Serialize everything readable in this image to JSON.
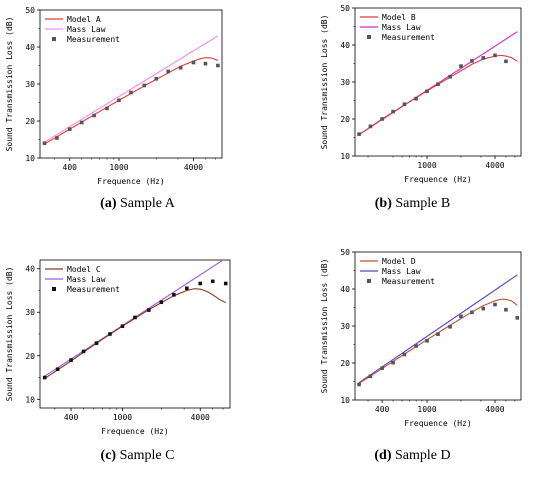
{
  "chart_data": [
    {
      "type": "line",
      "caption_letter": "(a)",
      "caption_text": "Sample A",
      "xlabel": "Frequence (Hz)",
      "ylabel": "Sound Transmission Loss (dB)",
      "xscale": "log",
      "xlim": [
        230,
        6800
      ],
      "ylim": [
        10,
        50
      ],
      "xticks": [
        400,
        1000,
        4000
      ],
      "xtick_labels": [
        "400",
        "1000",
        "4000"
      ],
      "yticks": [
        10,
        20,
        30,
        40,
        50
      ],
      "ytick_labels": [
        "10",
        "20",
        "30",
        "40",
        "50"
      ],
      "legend_position": "top-left",
      "series": [
        {
          "name": "Model A",
          "kind": "line",
          "color": "#e03c3c",
          "x": [
            250,
            400,
            630,
            1000,
            1600,
            2500,
            3150,
            4000,
            4500,
            5000,
            5600,
            6300
          ],
          "y": [
            13.8,
            17.8,
            21.7,
            25.6,
            29.5,
            33.0,
            34.8,
            36.2,
            36.8,
            37.1,
            37.0,
            36.4
          ]
        },
        {
          "name": "Mass Law",
          "kind": "line",
          "color": "#f28ff2",
          "x": [
            250,
            6300
          ],
          "y": [
            14.3,
            43.0
          ]
        },
        {
          "name": "Measurement",
          "kind": "scatter",
          "color": "#555555",
          "x": [
            250,
            315,
            400,
            500,
            630,
            800,
            1000,
            1250,
            1600,
            2000,
            2500,
            3150,
            4000,
            5000,
            6300
          ],
          "y": [
            14.0,
            15.4,
            17.8,
            19.6,
            21.5,
            23.4,
            25.6,
            27.7,
            29.6,
            31.4,
            33.4,
            34.4,
            35.8,
            35.5,
            35.0
          ]
        }
      ]
    },
    {
      "type": "line",
      "caption_letter": "(b)",
      "caption_text": "Sample B",
      "xlabel": "Frequence (Hz)",
      "ylabel": "Sound Transmission Loss (dB)",
      "xscale": "log",
      "xlim": [
        230,
        6800
      ],
      "ylim": [
        10,
        50
      ],
      "xticks": [
        1000,
        4000
      ],
      "xtick_labels": [
        "1000",
        "4000"
      ],
      "yticks": [
        10,
        20,
        30,
        40,
        50
      ],
      "ytick_labels": [
        "10",
        "20",
        "30",
        "40",
        "50"
      ],
      "legend_position": "top-left",
      "series": [
        {
          "name": "Model B",
          "kind": "line",
          "color": "#e03c3c",
          "x": [
            250,
            400,
            630,
            1000,
            1600,
            2500,
            3150,
            4000,
            4500,
            5000,
            5600,
            6300
          ],
          "y": [
            15.8,
            20.0,
            23.8,
            27.6,
            31.3,
            34.8,
            36.2,
            37.0,
            37.2,
            37.0,
            36.6,
            35.6
          ]
        },
        {
          "name": "Mass Law",
          "kind": "line",
          "color": "#cc33cc",
          "x": [
            250,
            6300
          ],
          "y": [
            15.8,
            43.6
          ]
        },
        {
          "name": "Measurement",
          "kind": "scatter",
          "color": "#555555",
          "x": [
            250,
            315,
            400,
            500,
            630,
            800,
            1000,
            1250,
            1600,
            2000,
            2500,
            3150,
            4000,
            5000
          ],
          "y": [
            15.9,
            18.0,
            20.0,
            22.0,
            24.0,
            25.5,
            27.5,
            29.4,
            31.4,
            34.3,
            35.7,
            36.5,
            37.2,
            35.6
          ]
        }
      ]
    },
    {
      "type": "line",
      "caption_letter": "(c)",
      "caption_text": "Sample C",
      "xlabel": "Frequence (Hz)",
      "ylabel": "Sound Transmission Loss (dB)",
      "xscale": "log",
      "xlim": [
        230,
        6800
      ],
      "ylim": [
        8,
        42
      ],
      "xticks": [
        400,
        1000,
        4000
      ],
      "xtick_labels": [
        "400",
        "1000",
        "4000"
      ],
      "yticks": [
        10,
        20,
        30,
        40
      ],
      "ytick_labels": [
        "10",
        "20",
        "30",
        "40"
      ],
      "legend_position": "top-left",
      "series": [
        {
          "name": "Model C",
          "kind": "line",
          "color": "#8b3a22",
          "x": [
            250,
            400,
            630,
            1000,
            1600,
            2500,
            3150,
            3600,
            4000,
            4500,
            5000,
            5600,
            6300
          ],
          "y": [
            14.8,
            18.8,
            22.9,
            26.8,
            30.6,
            33.8,
            35.0,
            35.4,
            35.3,
            34.8,
            34.0,
            33.0,
            32.2
          ]
        },
        {
          "name": "Mass Law",
          "kind": "line",
          "color": "#9b5de5",
          "x": [
            250,
            6300
          ],
          "y": [
            15.3,
            42.4
          ]
        },
        {
          "name": "Measurement",
          "kind": "scatter",
          "color": "#111111",
          "x": [
            250,
            315,
            400,
            500,
            630,
            800,
            1000,
            1250,
            1600,
            2000,
            2500,
            3150,
            4000,
            5000,
            6300
          ],
          "y": [
            15.0,
            16.9,
            19.0,
            21.0,
            22.9,
            25.0,
            26.8,
            28.8,
            30.5,
            32.3,
            34.0,
            35.5,
            36.6,
            37.1,
            36.6
          ]
        }
      ]
    },
    {
      "type": "line",
      "caption_letter": "(d)",
      "caption_text": "Sample D",
      "xlabel": "Frequence (Hz)",
      "ylabel": "Sound Transmission Loss (dB)",
      "xscale": "log",
      "xlim": [
        230,
        6800
      ],
      "ylim": [
        10,
        50
      ],
      "xticks": [
        400,
        1000,
        4000
      ],
      "xtick_labels": [
        "400",
        "1000",
        "4000"
      ],
      "yticks": [
        10,
        20,
        30,
        40,
        50
      ],
      "ytick_labels": [
        "10",
        "20",
        "30",
        "40",
        "50"
      ],
      "legend_position": "top-left",
      "series": [
        {
          "name": "Model D",
          "kind": "line",
          "color": "#b5553c",
          "x": [
            250,
            400,
            630,
            1000,
            1600,
            2500,
            3150,
            4000,
            4500,
            5000,
            5600,
            6300
          ],
          "y": [
            14.5,
            18.5,
            22.4,
            26.3,
            30.2,
            33.8,
            35.5,
            36.8,
            37.2,
            37.2,
            36.8,
            35.6
          ]
        },
        {
          "name": "Mass Law",
          "kind": "line",
          "color": "#5b3fcc",
          "x": [
            250,
            6300
          ],
          "y": [
            14.7,
            43.8
          ]
        },
        {
          "name": "Measurement",
          "kind": "scatter",
          "color": "#555555",
          "x": [
            250,
            315,
            400,
            500,
            630,
            800,
            1000,
            1250,
            1600,
            2000,
            2500,
            3150,
            4000,
            5000,
            6300
          ],
          "y": [
            14.2,
            16.4,
            18.6,
            20.1,
            22.3,
            24.6,
            26.0,
            27.8,
            29.8,
            32.6,
            33.7,
            34.7,
            35.8,
            34.4,
            32.2
          ]
        }
      ]
    }
  ]
}
